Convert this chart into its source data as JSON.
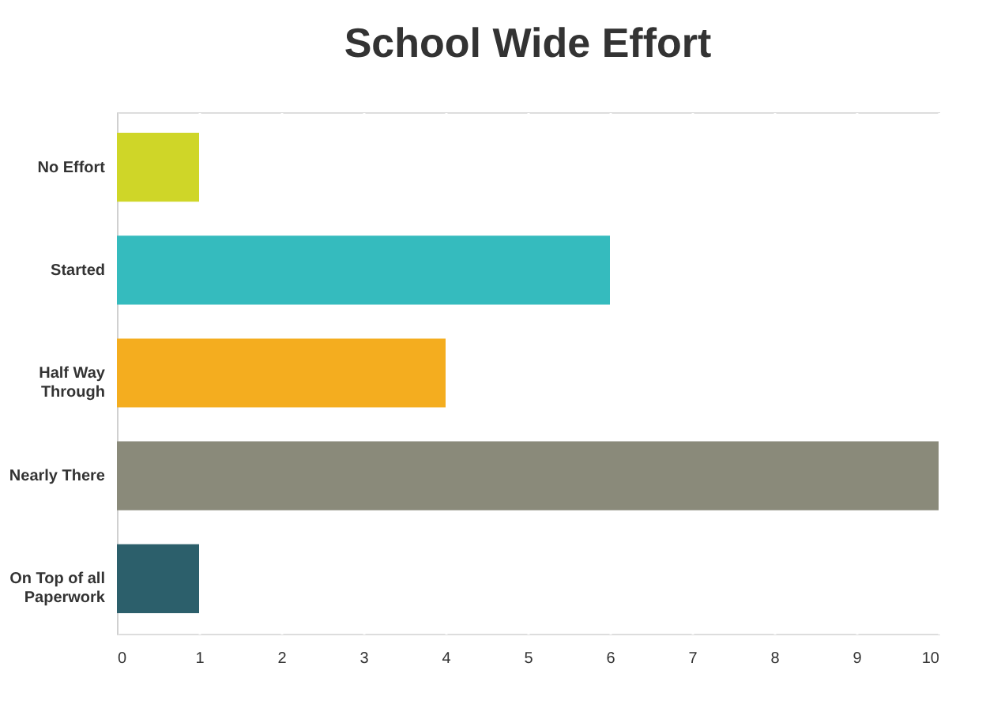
{
  "chart_data": {
    "type": "bar",
    "orientation": "horizontal",
    "title": "School Wide Effort",
    "categories": [
      "No Effort",
      "Started",
      "Half Way Through",
      "Nearly There",
      "On Top of all Paperwork"
    ],
    "values": [
      1,
      6,
      4,
      10,
      1
    ],
    "colors": [
      "#cfd628",
      "#35bbbe",
      "#f4ad1f",
      "#8a8a7a",
      "#2c5f6b"
    ],
    "xlim": [
      0,
      10
    ],
    "xticks": [
      0,
      1,
      2,
      3,
      4,
      5,
      6,
      7,
      8,
      9,
      10
    ],
    "grid": "x"
  }
}
